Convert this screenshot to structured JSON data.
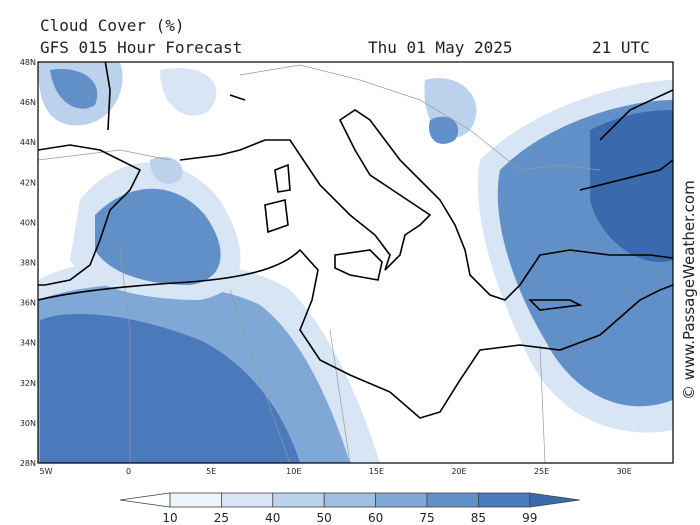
{
  "header": {
    "title": "Cloud Cover (%)",
    "subtitle": "GFS 015 Hour Forecast",
    "date": "Thu 01 May 2025",
    "time": "21 UTC"
  },
  "map": {
    "lat_labels": [
      "48N",
      "46N",
      "44N",
      "42N",
      "40N",
      "38N",
      "36N",
      "34N",
      "32N",
      "30N",
      "28N"
    ],
    "lon_labels": [
      "5W",
      "0",
      "5E",
      "10E",
      "15E",
      "20E",
      "25E",
      "30E"
    ]
  },
  "colorbar": {
    "ticks": [
      10,
      25,
      40,
      50,
      60,
      75,
      85,
      99
    ],
    "colors": [
      "#ffffff",
      "#eef4fb",
      "#d7e5f4",
      "#bcd2ec",
      "#9fbfe2",
      "#7fa8d6",
      "#6190c9",
      "#4a7abb",
      "#3b69ad"
    ]
  },
  "credit": "© www.PassageWeather.com"
}
